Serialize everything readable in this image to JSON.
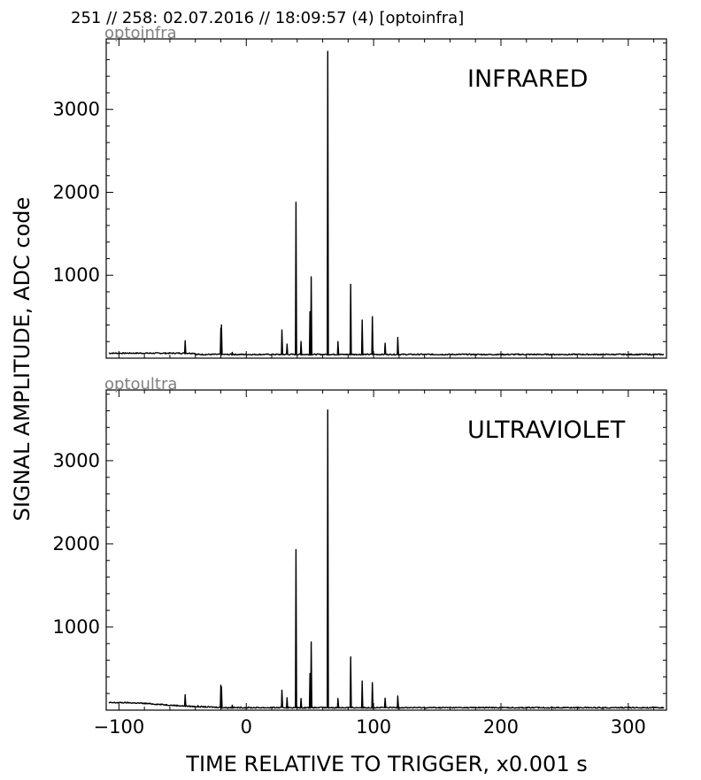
{
  "header": "251 // 258:   02.07.2016 // 18:09:57 (4)  [optoinfra]",
  "ylabel": "SIGNAL AMPLITUDE,  ADC code",
  "xlabel": "TIME RELATIVE TO TRIGGER,   x0.001 s",
  "colors": {
    "line": "#000000",
    "subtitle": "#808080"
  },
  "chart_data": [
    {
      "type": "line",
      "subtitle": "optoinfra",
      "label": "INFRARED",
      "xlim": [
        -110,
        330
      ],
      "ylim": [
        0,
        3850
      ],
      "xticks": [
        -100,
        0,
        100,
        200,
        300
      ],
      "yticks": [
        1000,
        2000,
        3000
      ],
      "baseline": 45,
      "peaks": [
        {
          "x": -48,
          "y": 210
        },
        {
          "x": -38,
          "y": 50
        },
        {
          "x": -20,
          "y": 360
        },
        {
          "x": -19.5,
          "y": 400
        },
        {
          "x": -11,
          "y": 70
        },
        {
          "x": 28,
          "y": 340
        },
        {
          "x": 32,
          "y": 170
        },
        {
          "x": 39,
          "y": 1880
        },
        {
          "x": 43,
          "y": 200
        },
        {
          "x": 50,
          "y": 560
        },
        {
          "x": 51,
          "y": 980
        },
        {
          "x": 64,
          "y": 3700
        },
        {
          "x": 72,
          "y": 200
        },
        {
          "x": 82,
          "y": 890
        },
        {
          "x": 91,
          "y": 460
        },
        {
          "x": 99,
          "y": 500
        },
        {
          "x": 109,
          "y": 180
        },
        {
          "x": 119,
          "y": 250
        }
      ]
    },
    {
      "type": "line",
      "subtitle": "optoultra",
      "label": "ULTRAVIOLET",
      "xlim": [
        -110,
        330
      ],
      "ylim": [
        0,
        3850
      ],
      "xticks": [
        -100,
        0,
        100,
        200,
        300
      ],
      "yticks": [
        1000,
        2000,
        3000
      ],
      "baseline": 30,
      "peaks": [
        {
          "x": -48,
          "y": 185
        },
        {
          "x": -38,
          "y": 55
        },
        {
          "x": -20,
          "y": 300
        },
        {
          "x": -19.5,
          "y": 280
        },
        {
          "x": -11,
          "y": 60
        },
        {
          "x": 28,
          "y": 240
        },
        {
          "x": 32,
          "y": 150
        },
        {
          "x": 39,
          "y": 1930
        },
        {
          "x": 43,
          "y": 140
        },
        {
          "x": 50,
          "y": 440
        },
        {
          "x": 51,
          "y": 820
        },
        {
          "x": 64,
          "y": 3610
        },
        {
          "x": 72,
          "y": 140
        },
        {
          "x": 82,
          "y": 640
        },
        {
          "x": 91,
          "y": 350
        },
        {
          "x": 99,
          "y": 330
        },
        {
          "x": 109,
          "y": 145
        },
        {
          "x": 119,
          "y": 170
        }
      ]
    }
  ]
}
